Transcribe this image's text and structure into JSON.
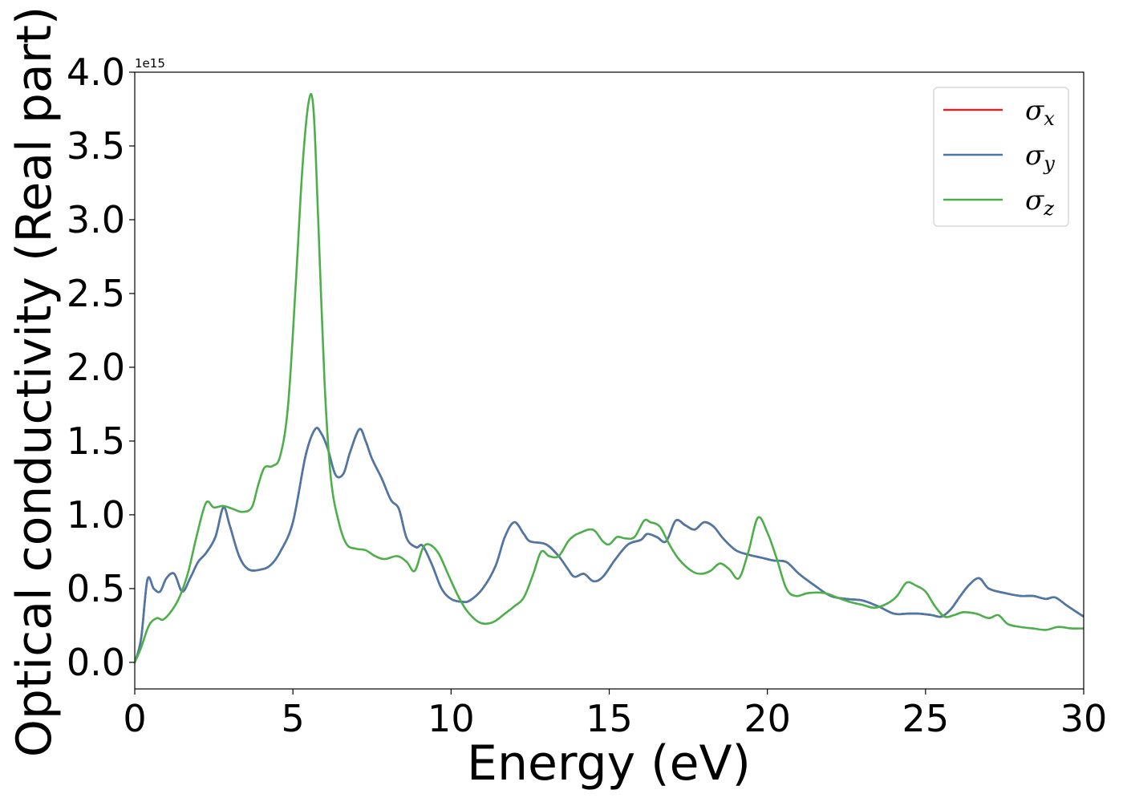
{
  "chart_data": {
    "type": "line",
    "xlabel": "Energy (eV)",
    "ylabel": "Optical conductivity (Real part)",
    "y_offset_label": "1e15",
    "xlim": [
      0,
      30
    ],
    "ylim": [
      -0.18,
      4.0
    ],
    "x_ticks": [
      0,
      5,
      10,
      15,
      20,
      25,
      30
    ],
    "x_tick_labels": [
      "0",
      "5",
      "10",
      "15",
      "20",
      "25",
      "30"
    ],
    "y_ticks": [
      0.0,
      0.5,
      1.0,
      1.5,
      2.0,
      2.5,
      3.0,
      3.5,
      4.0
    ],
    "y_tick_labels": [
      "0.0",
      "0.5",
      "1.0",
      "1.5",
      "2.0",
      "2.5",
      "3.0",
      "3.5",
      "4.0"
    ],
    "grid": false,
    "legend_position": "top-right",
    "series": [
      {
        "name": "σx",
        "symbol": "σ",
        "subscript": "x",
        "color": "#d62728",
        "x": [
          0,
          0.2,
          0.4,
          0.6,
          0.8,
          1.0,
          1.25,
          1.5,
          1.75,
          2.0,
          2.25,
          2.55,
          2.8,
          3.0,
          3.3,
          3.6,
          4.0,
          4.3,
          4.6,
          5.0,
          5.4,
          5.7,
          5.9,
          6.1,
          6.35,
          6.6,
          6.8,
          7.1,
          7.3,
          7.5,
          7.8,
          8.1,
          8.35,
          8.6,
          8.9,
          9.1,
          9.4,
          9.7,
          10.0,
          10.35,
          10.6,
          11.0,
          11.4,
          11.7,
          12.0,
          12.3,
          12.5,
          13.0,
          13.4,
          13.7,
          13.9,
          14.2,
          14.5,
          14.8,
          15.2,
          15.6,
          16.0,
          16.2,
          16.5,
          16.8,
          17.1,
          17.4,
          17.7,
          18.0,
          18.3,
          18.6,
          19.0,
          19.4,
          19.8,
          20.2,
          20.6,
          21.0,
          21.5,
          22.0,
          22.5,
          23.0,
          23.5,
          24.0,
          24.4,
          24.8,
          25.2,
          25.5,
          25.8,
          26.1,
          26.4,
          26.7,
          27.0,
          27.5,
          28.0,
          28.4,
          28.8,
          29.1,
          29.5,
          30.0
        ],
        "y": [
          0.0,
          0.16,
          0.56,
          0.5,
          0.48,
          0.57,
          0.6,
          0.48,
          0.57,
          0.68,
          0.74,
          0.85,
          1.05,
          0.93,
          0.72,
          0.63,
          0.63,
          0.66,
          0.75,
          0.95,
          1.4,
          1.58,
          1.55,
          1.45,
          1.27,
          1.28,
          1.42,
          1.58,
          1.5,
          1.38,
          1.25,
          1.1,
          1.04,
          0.84,
          0.78,
          0.79,
          0.66,
          0.5,
          0.43,
          0.41,
          0.42,
          0.5,
          0.65,
          0.85,
          0.95,
          0.87,
          0.82,
          0.8,
          0.72,
          0.63,
          0.58,
          0.6,
          0.55,
          0.58,
          0.7,
          0.8,
          0.83,
          0.87,
          0.85,
          0.82,
          0.96,
          0.93,
          0.9,
          0.95,
          0.92,
          0.84,
          0.76,
          0.73,
          0.71,
          0.69,
          0.68,
          0.6,
          0.52,
          0.45,
          0.43,
          0.42,
          0.38,
          0.33,
          0.33,
          0.33,
          0.32,
          0.31,
          0.36,
          0.45,
          0.53,
          0.57,
          0.5,
          0.47,
          0.45,
          0.45,
          0.43,
          0.44,
          0.38,
          0.31
        ]
      },
      {
        "name": "σy",
        "symbol": "σ",
        "subscript": "y",
        "color": "#4a78a8",
        "x": [
          0,
          0.2,
          0.4,
          0.6,
          0.8,
          1.0,
          1.25,
          1.5,
          1.75,
          2.0,
          2.25,
          2.55,
          2.8,
          3.0,
          3.3,
          3.6,
          4.0,
          4.3,
          4.6,
          5.0,
          5.4,
          5.7,
          5.9,
          6.1,
          6.35,
          6.6,
          6.8,
          7.1,
          7.3,
          7.5,
          7.8,
          8.1,
          8.35,
          8.6,
          8.9,
          9.1,
          9.4,
          9.7,
          10.0,
          10.35,
          10.6,
          11.0,
          11.4,
          11.7,
          12.0,
          12.3,
          12.5,
          13.0,
          13.4,
          13.7,
          13.9,
          14.2,
          14.5,
          14.8,
          15.2,
          15.6,
          16.0,
          16.2,
          16.5,
          16.8,
          17.1,
          17.4,
          17.7,
          18.0,
          18.3,
          18.6,
          19.0,
          19.4,
          19.8,
          20.2,
          20.6,
          21.0,
          21.5,
          22.0,
          22.5,
          23.0,
          23.5,
          24.0,
          24.4,
          24.8,
          25.2,
          25.5,
          25.8,
          26.1,
          26.4,
          26.7,
          27.0,
          27.5,
          28.0,
          28.4,
          28.8,
          29.1,
          29.5,
          30.0
        ],
        "y": [
          0.0,
          0.16,
          0.56,
          0.5,
          0.48,
          0.57,
          0.6,
          0.48,
          0.57,
          0.68,
          0.74,
          0.85,
          1.05,
          0.93,
          0.72,
          0.63,
          0.63,
          0.66,
          0.75,
          0.95,
          1.4,
          1.58,
          1.55,
          1.45,
          1.27,
          1.28,
          1.42,
          1.58,
          1.5,
          1.38,
          1.25,
          1.1,
          1.04,
          0.84,
          0.78,
          0.79,
          0.66,
          0.5,
          0.43,
          0.41,
          0.42,
          0.5,
          0.65,
          0.85,
          0.95,
          0.87,
          0.82,
          0.8,
          0.72,
          0.63,
          0.58,
          0.6,
          0.55,
          0.58,
          0.7,
          0.8,
          0.83,
          0.87,
          0.85,
          0.82,
          0.96,
          0.93,
          0.9,
          0.95,
          0.92,
          0.84,
          0.76,
          0.73,
          0.71,
          0.69,
          0.68,
          0.6,
          0.52,
          0.45,
          0.43,
          0.42,
          0.38,
          0.33,
          0.33,
          0.33,
          0.32,
          0.31,
          0.36,
          0.45,
          0.53,
          0.57,
          0.5,
          0.47,
          0.45,
          0.45,
          0.43,
          0.44,
          0.38,
          0.31
        ]
      },
      {
        "name": "σz",
        "symbol": "σ",
        "subscript": "z",
        "color": "#4daf4a",
        "x": [
          0,
          0.2,
          0.45,
          0.7,
          0.9,
          1.2,
          1.45,
          1.7,
          1.95,
          2.25,
          2.5,
          2.8,
          3.1,
          3.4,
          3.7,
          3.9,
          4.1,
          4.35,
          4.6,
          4.85,
          5.1,
          5.3,
          5.5,
          5.65,
          5.8,
          6.0,
          6.2,
          6.45,
          6.7,
          7.0,
          7.3,
          7.6,
          7.9,
          8.3,
          8.6,
          8.85,
          9.1,
          9.3,
          9.6,
          9.9,
          10.2,
          10.5,
          10.9,
          11.3,
          11.7,
          12.0,
          12.3,
          12.6,
          12.85,
          13.1,
          13.4,
          13.7,
          13.9,
          14.1,
          14.35,
          14.55,
          14.8,
          15.0,
          15.25,
          15.5,
          15.8,
          16.1,
          16.3,
          16.6,
          16.9,
          17.2,
          17.6,
          17.9,
          18.2,
          18.5,
          18.8,
          19.1,
          19.4,
          19.7,
          20.0,
          20.3,
          20.6,
          20.9,
          21.3,
          21.8,
          22.2,
          22.6,
          23.0,
          23.4,
          23.8,
          24.1,
          24.4,
          24.7,
          25.0,
          25.3,
          25.6,
          25.9,
          26.2,
          26.6,
          27.0,
          27.3,
          27.6,
          28.0,
          28.4,
          28.8,
          29.2,
          29.6,
          30.0
        ],
        "y": [
          0.0,
          0.1,
          0.25,
          0.3,
          0.29,
          0.36,
          0.46,
          0.62,
          0.85,
          1.08,
          1.05,
          1.06,
          1.04,
          1.02,
          1.05,
          1.2,
          1.32,
          1.33,
          1.4,
          1.75,
          2.6,
          3.35,
          3.8,
          3.75,
          3.0,
          1.9,
          1.25,
          0.95,
          0.8,
          0.77,
          0.76,
          0.72,
          0.7,
          0.72,
          0.68,
          0.62,
          0.77,
          0.8,
          0.74,
          0.6,
          0.46,
          0.35,
          0.27,
          0.27,
          0.33,
          0.38,
          0.44,
          0.6,
          0.75,
          0.72,
          0.72,
          0.82,
          0.86,
          0.88,
          0.9,
          0.89,
          0.82,
          0.8,
          0.85,
          0.84,
          0.85,
          0.96,
          0.95,
          0.92,
          0.8,
          0.7,
          0.62,
          0.6,
          0.62,
          0.67,
          0.63,
          0.57,
          0.75,
          0.98,
          0.88,
          0.7,
          0.5,
          0.45,
          0.47,
          0.47,
          0.44,
          0.41,
          0.39,
          0.37,
          0.4,
          0.45,
          0.54,
          0.52,
          0.48,
          0.38,
          0.31,
          0.32,
          0.34,
          0.33,
          0.3,
          0.32,
          0.26,
          0.24,
          0.23,
          0.22,
          0.24,
          0.23,
          0.23
        ]
      }
    ]
  }
}
